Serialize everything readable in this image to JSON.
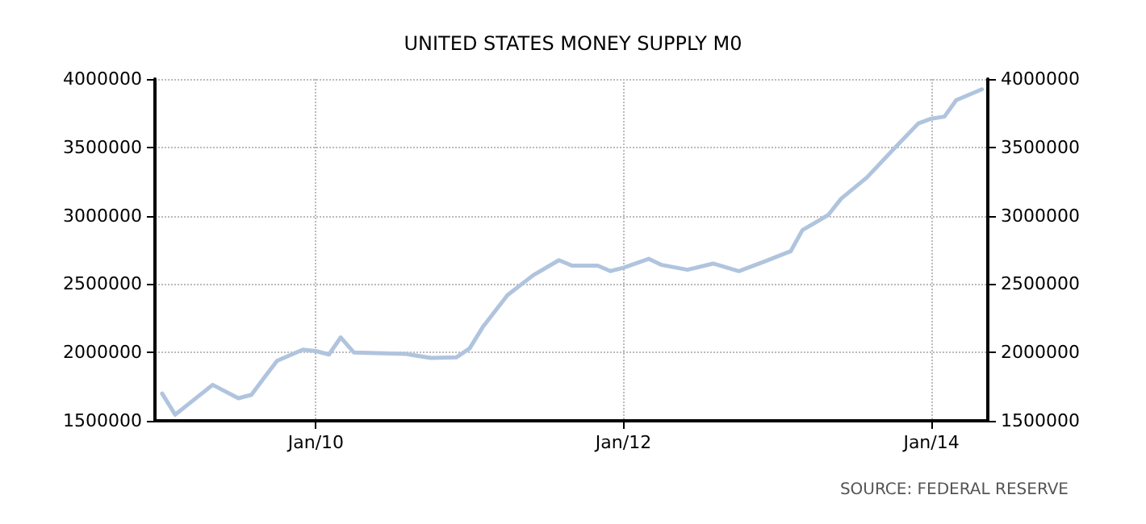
{
  "chart_data": {
    "type": "line",
    "title": "UNITED STATES MONEY SUPPLY M0",
    "x": [
      "2009-01",
      "2009-02",
      "2009-05",
      "2009-07",
      "2009-08",
      "2009-09",
      "2009-10",
      "2009-12",
      "2010-01",
      "2010-02",
      "2010-03",
      "2010-04",
      "2010-08",
      "2010-10",
      "2010-12",
      "2011-01",
      "2011-02",
      "2011-04",
      "2011-06",
      "2011-08",
      "2011-09",
      "2011-11",
      "2011-12",
      "2012-01",
      "2012-03",
      "2012-04",
      "2012-06",
      "2012-08",
      "2012-10",
      "2012-12",
      "2013-02",
      "2013-03",
      "2013-05",
      "2013-06",
      "2013-08",
      "2013-10",
      "2013-12",
      "2014-01",
      "2014-02",
      "2014-03",
      "2014-05"
    ],
    "series": [
      {
        "color": "#b0c4de",
        "values": [
          1700000,
          1545000,
          1763000,
          1665000,
          1690000,
          1818000,
          1939000,
          2020000,
          2010000,
          1985000,
          2110000,
          2000000,
          1990000,
          1960000,
          1965000,
          2030000,
          2185000,
          2420000,
          2565000,
          2675000,
          2635000,
          2635000,
          2595000,
          2620000,
          2685000,
          2640000,
          2605000,
          2650000,
          2595000,
          2665000,
          2740000,
          2895000,
          3005000,
          3125000,
          3280000,
          3480000,
          3675000,
          3710000,
          3725000,
          3845000,
          3925000
        ]
      }
    ],
    "xlim": [
      "2008-12-15",
      "2014-05-15"
    ],
    "xticks": [
      {
        "value": "2010-01",
        "label": "Jan/10"
      },
      {
        "value": "2012-01",
        "label": "Jan/12"
      },
      {
        "value": "2014-01",
        "label": "Jan/14"
      }
    ],
    "ylim": [
      1500000,
      4000000
    ],
    "yticks": [
      1500000,
      2000000,
      2500000,
      3000000,
      3500000,
      4000000
    ],
    "y2lim": [
      1500000,
      4000000
    ],
    "y2ticks": [
      1500000,
      2000000,
      2500000,
      3000000,
      3500000,
      4000000
    ],
    "grid": true,
    "marker": "none",
    "line_style": "solid",
    "annotations": [
      "SOURCE: FEDERAL RESERVE"
    ]
  }
}
